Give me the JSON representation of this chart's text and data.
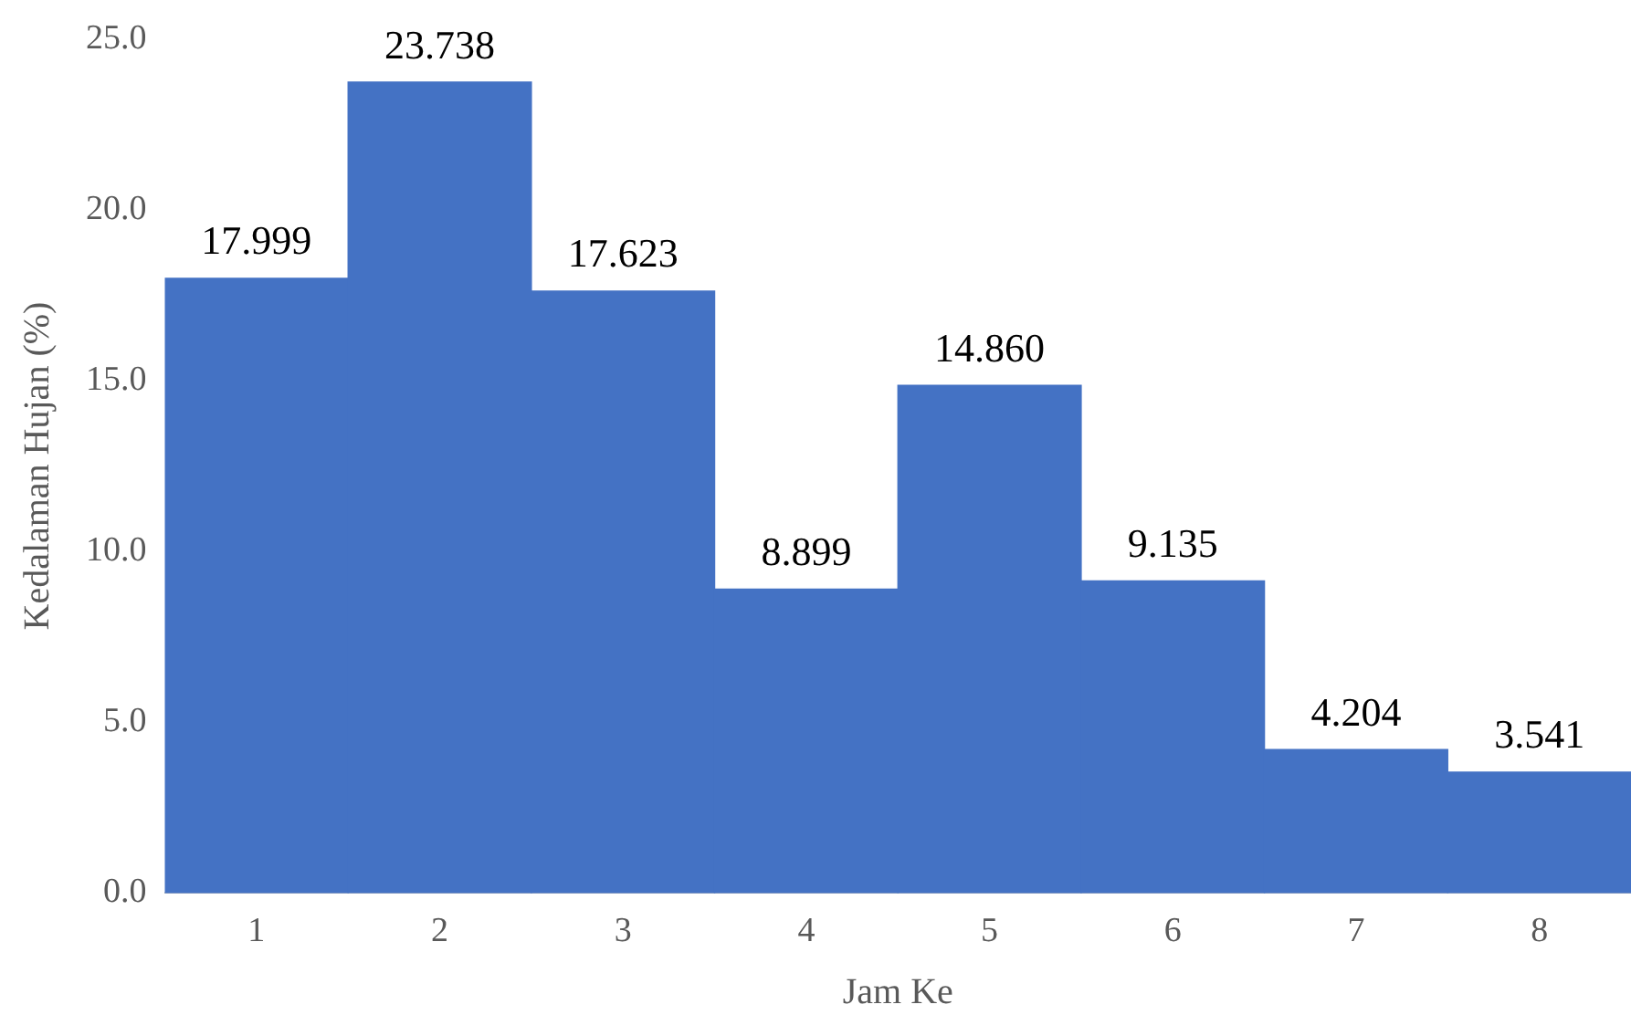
{
  "chart_data": {
    "type": "bar",
    "xlabel": "Jam Ke",
    "ylabel": "Kedalaman Hujan (%)",
    "categories": [
      "1",
      "2",
      "3",
      "4",
      "5",
      "6",
      "7",
      "8"
    ],
    "values": [
      17.999,
      23.738,
      17.623,
      8.899,
      14.86,
      9.135,
      4.204,
      3.541
    ],
    "value_labels": [
      "17.999",
      "23.738",
      "17.623",
      "8.899",
      "14.860",
      "9.135",
      "4.204",
      "3.541"
    ],
    "color": "#4472c4",
    "ylim": [
      0,
      25
    ],
    "yticks": [
      {
        "value": 0,
        "label": "0.0"
      },
      {
        "value": 5,
        "label": "5.0"
      },
      {
        "value": 10,
        "label": "10.0"
      },
      {
        "value": 15,
        "label": "15.0"
      },
      {
        "value": 20,
        "label": "20.0"
      },
      {
        "value": 25,
        "label": "25.0"
      }
    ],
    "grid": false,
    "legend": false
  }
}
